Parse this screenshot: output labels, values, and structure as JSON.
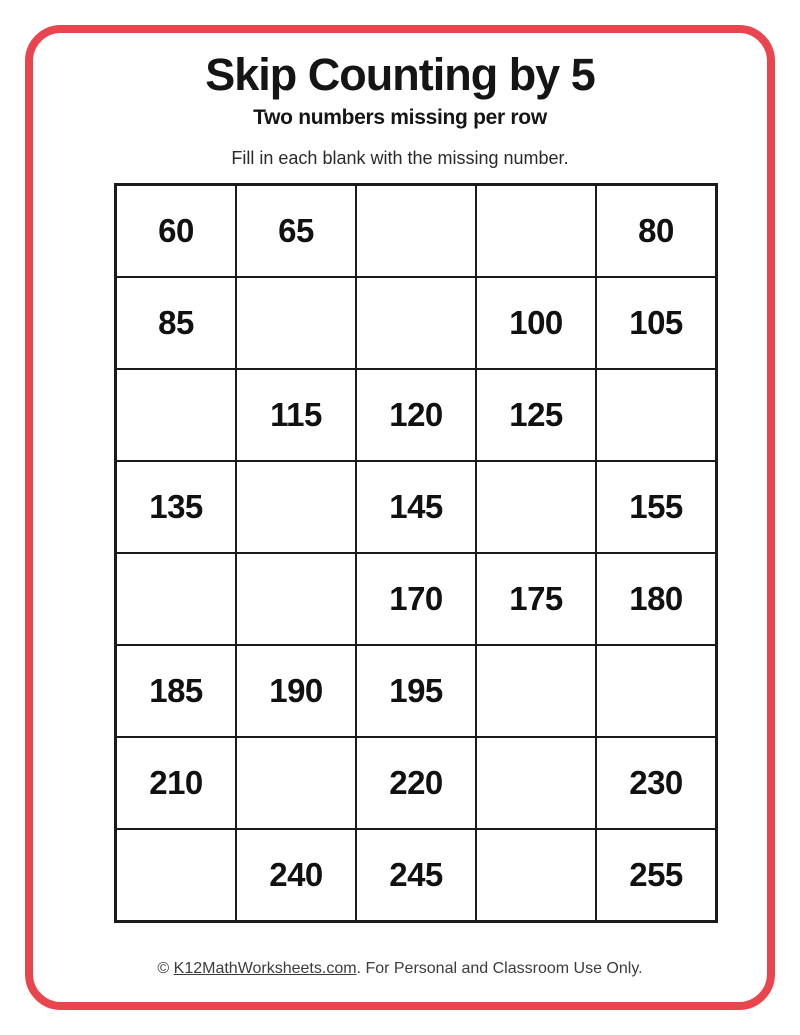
{
  "page": {
    "border_color": "#e8454e",
    "background_color": "#ffffff"
  },
  "header": {
    "title": "Skip Counting by 5",
    "subtitle": "Two numbers missing per row",
    "instruction": "Fill in each blank with the missing number."
  },
  "grid": {
    "columns": 5,
    "rows": [
      [
        "60",
        "65",
        "",
        "",
        "80"
      ],
      [
        "85",
        "",
        "",
        "100",
        "105"
      ],
      [
        "",
        "115",
        "120",
        "125",
        ""
      ],
      [
        "135",
        "",
        "145",
        "",
        "155"
      ],
      [
        "",
        "",
        "170",
        "175",
        "180"
      ],
      [
        "185",
        "190",
        "195",
        "",
        ""
      ],
      [
        "210",
        "",
        "220",
        "",
        "230"
      ],
      [
        "",
        "240",
        "245",
        "",
        "255"
      ]
    ]
  },
  "footer": {
    "prefix": "© ",
    "link_text": "K12MathWorksheets.com",
    "suffix": ". For Personal and Classroom Use Only."
  }
}
